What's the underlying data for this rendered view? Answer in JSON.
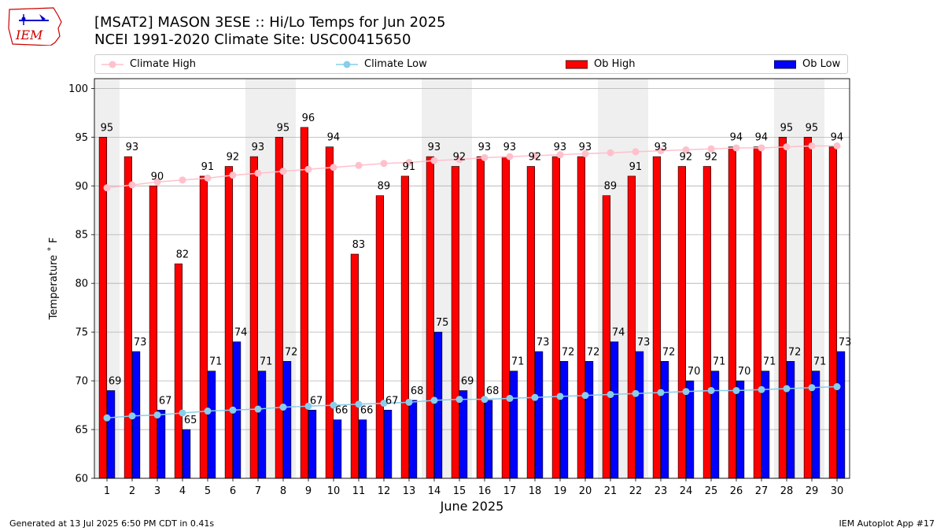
{
  "header": {
    "title_line1": "[MSAT2] MASON 3ESE :: Hi/Lo Temps for Jun 2025",
    "title_line2": "NCEI 1991-2020 Climate Site: USC00415650"
  },
  "logo": {
    "text": "IEM",
    "colors": {
      "text": "#cc0000",
      "outline": "#cc0000",
      "symbol": "#0000cc"
    }
  },
  "footer": {
    "left": "Generated at 13 Jul 2025 6:50 PM CDT in 0.41s",
    "right": "IEM Autoplot App #17"
  },
  "legend": {
    "climate_high": "Climate High",
    "climate_low": "Climate Low",
    "ob_high": "Ob High",
    "ob_low": "Ob Low"
  },
  "chart_data": {
    "type": "bar",
    "xlabel": "June 2025",
    "ylabel": "Temperature ˚ F",
    "ylim": [
      60,
      101
    ],
    "yticks": [
      60,
      65,
      70,
      75,
      80,
      85,
      90,
      95,
      100
    ],
    "grid": true,
    "legend_placement": "top",
    "weekend_shading": [
      1,
      7,
      8,
      14,
      15,
      21,
      22,
      28,
      29
    ],
    "categories": [
      1,
      2,
      3,
      4,
      5,
      6,
      7,
      8,
      9,
      10,
      11,
      12,
      13,
      14,
      15,
      16,
      17,
      18,
      19,
      20,
      21,
      22,
      23,
      24,
      25,
      26,
      27,
      28,
      29,
      30
    ],
    "series": [
      {
        "name": "Ob High",
        "kind": "bar",
        "color": "#ff0000",
        "values": [
          95,
          93,
          90,
          82,
          91,
          92,
          93,
          95,
          96,
          94,
          83,
          89,
          91,
          93,
          92,
          93,
          93,
          92,
          93,
          93,
          89,
          91,
          93,
          92,
          92,
          94,
          94,
          95,
          95,
          94
        ]
      },
      {
        "name": "Ob Low",
        "kind": "bar",
        "color": "#0000ff",
        "values": [
          69,
          73,
          67,
          65,
          71,
          74,
          71,
          72,
          67,
          66,
          66,
          67,
          68,
          75,
          69,
          68,
          71,
          73,
          72,
          72,
          74,
          73,
          72,
          70,
          71,
          70,
          71,
          72,
          71,
          73
        ]
      },
      {
        "name": "Climate High",
        "kind": "line",
        "color": "#ffc0cb",
        "values": [
          89.8,
          90.1,
          90.4,
          90.6,
          90.8,
          91.1,
          91.3,
          91.5,
          91.7,
          91.9,
          92.1,
          92.3,
          92.4,
          92.6,
          92.7,
          92.9,
          93.0,
          93.1,
          93.2,
          93.3,
          93.4,
          93.5,
          93.6,
          93.7,
          93.8,
          93.9,
          93.9,
          94.0,
          94.1,
          94.1
        ]
      },
      {
        "name": "Climate Low",
        "kind": "line",
        "color": "#87ceeb",
        "values": [
          66.2,
          66.4,
          66.5,
          66.7,
          66.9,
          67.0,
          67.1,
          67.3,
          67.4,
          67.5,
          67.6,
          67.7,
          67.8,
          68.0,
          68.1,
          68.1,
          68.2,
          68.3,
          68.4,
          68.5,
          68.6,
          68.7,
          68.8,
          68.9,
          69.0,
          69.0,
          69.1,
          69.2,
          69.3,
          69.4
        ]
      }
    ]
  }
}
